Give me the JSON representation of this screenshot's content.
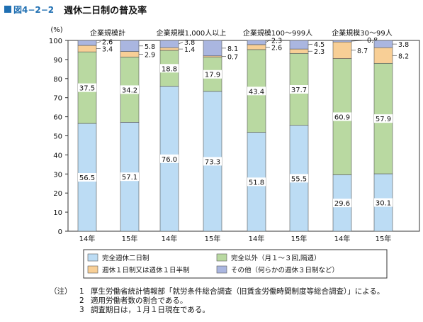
{
  "figure": {
    "label": "図4−2−2",
    "title": "週休二日制の普及率",
    "accent_color": "#1f6fb2"
  },
  "chart_data": {
    "type": "bar",
    "stacked": true,
    "y_unit": "(%)",
    "ylim": [
      0,
      100
    ],
    "yticks": [
      0,
      10,
      20,
      30,
      40,
      50,
      60,
      70,
      80,
      90,
      100
    ],
    "grid": false,
    "groups": [
      {
        "label": "企業規模計",
        "bars": [
          {
            "x": "14年",
            "values": [
              56.5,
              37.5,
              3.4,
              2.6
            ]
          },
          {
            "x": "15年",
            "values": [
              57.1,
              34.2,
              2.9,
              5.8
            ]
          }
        ]
      },
      {
        "label": "企業規模1,000人以上",
        "bars": [
          {
            "x": "14年",
            "values": [
              76.0,
              18.8,
              1.4,
              3.8
            ]
          },
          {
            "x": "15年",
            "values": [
              73.3,
              17.9,
              0.7,
              8.1
            ]
          }
        ]
      },
      {
        "label": "企業規模100〜999人",
        "bars": [
          {
            "x": "14年",
            "values": [
              51.8,
              43.4,
              2.6,
              2.3
            ]
          },
          {
            "x": "15年",
            "values": [
              55.5,
              37.7,
              2.3,
              4.5
            ]
          }
        ]
      },
      {
        "label": "企業規模30〜99人",
        "bars": [
          {
            "x": "14年",
            "values": [
              29.6,
              60.9,
              8.7,
              0.8
            ]
          },
          {
            "x": "15年",
            "values": [
              30.1,
              57.9,
              8.2,
              3.8
            ]
          }
        ]
      }
    ],
    "series": [
      {
        "name": "完全週休二日制",
        "color": "#bcdcf4"
      },
      {
        "name": "完全以外（月１〜３回,隔週）",
        "color": "#b9d9a1"
      },
      {
        "name": "週休１日制又は週休１日半制",
        "color": "#f8cf96"
      },
      {
        "name": "その他（何らかの週休３日制など）",
        "color": "#aab6e0"
      }
    ],
    "legend_position": "bottom"
  },
  "notes": {
    "prefix": "（注）",
    "items": [
      {
        "num": "1",
        "text": "厚生労働省統計情報部「就労条件総合調査（旧賃金労働時間制度等総合調査）」による。"
      },
      {
        "num": "2",
        "text": "適用労働者数の割合である。"
      },
      {
        "num": "3",
        "text": "調査期日は，１月１日現在である。"
      }
    ]
  }
}
